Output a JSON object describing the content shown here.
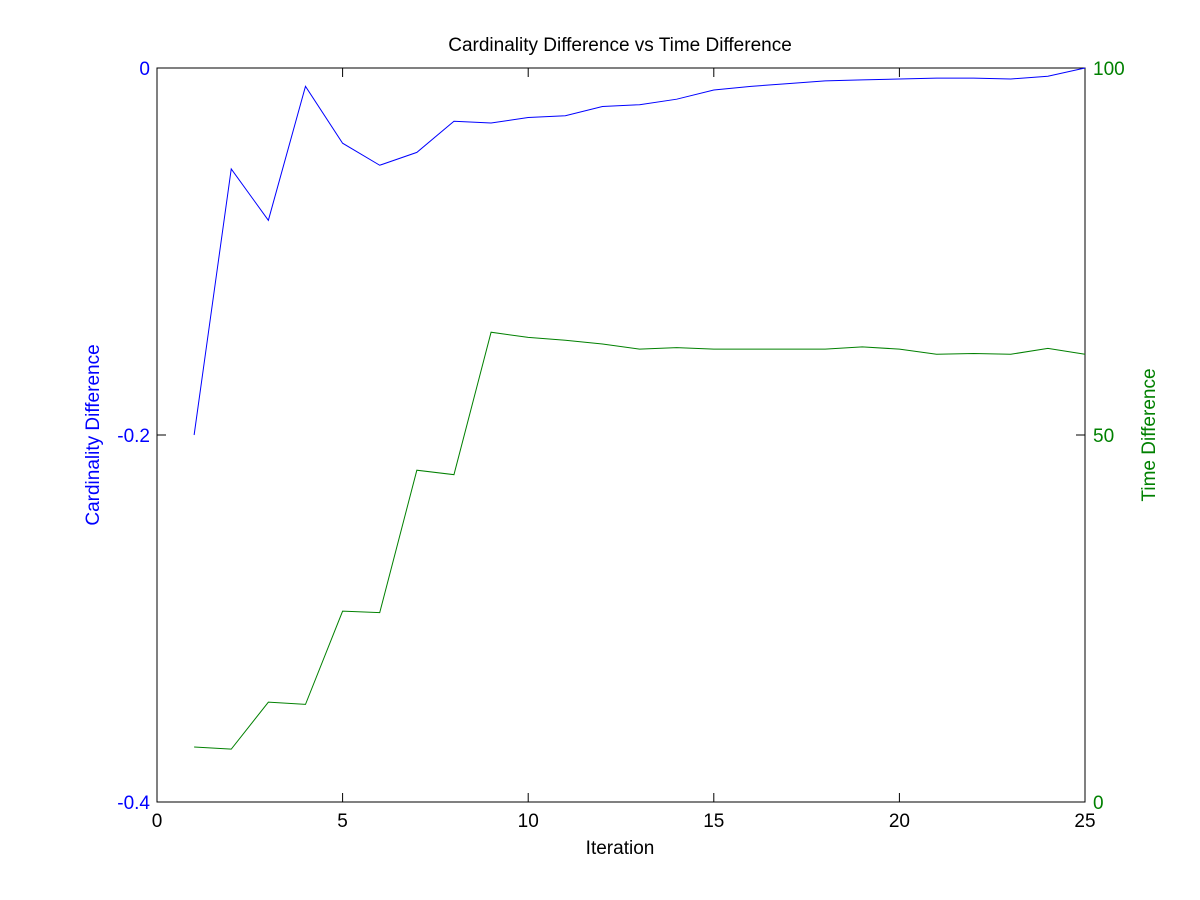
{
  "chart_data": {
    "type": "line",
    "title": "Cardinality Difference vs Time Difference",
    "xlabel": "Iteration",
    "xlim": [
      0,
      25
    ],
    "x_ticks": [
      0,
      5,
      10,
      15,
      20,
      25
    ],
    "y_left": {
      "label": "Cardinality Difference",
      "lim": [
        -0.4,
        0
      ],
      "ticks": [
        -0.4,
        -0.2,
        0
      ],
      "tick_labels": [
        "-0.4",
        "-0.2",
        "0"
      ],
      "color": "#0000ff"
    },
    "y_right": {
      "label": "Time Difference",
      "lim": [
        0,
        100
      ],
      "ticks": [
        0,
        50,
        100
      ],
      "tick_labels": [
        "0",
        "50",
        "100"
      ],
      "color": "#008000"
    },
    "x": [
      1,
      2,
      3,
      4,
      5,
      6,
      7,
      8,
      9,
      10,
      11,
      12,
      13,
      14,
      15,
      16,
      17,
      18,
      19,
      20,
      21,
      22,
      23,
      24,
      25
    ],
    "series": [
      {
        "axis": "left",
        "color": "#0000ff",
        "values": [
          -0.2,
          -0.055,
          -0.083,
          -0.01,
          -0.041,
          -0.053,
          -0.046,
          -0.029,
          -0.03,
          -0.027,
          -0.026,
          -0.021,
          -0.02,
          -0.017,
          -0.012,
          -0.01,
          -0.0085,
          -0.007,
          -0.0065,
          -0.006,
          -0.0055,
          -0.0055,
          -0.006,
          -0.0045,
          0
        ]
      },
      {
        "axis": "right",
        "color": "#008000",
        "values": [
          7.5,
          7.2,
          13.6,
          13.3,
          26.0,
          25.8,
          45.2,
          44.6,
          64.0,
          63.3,
          62.9,
          62.4,
          61.7,
          61.9,
          61.7,
          61.7,
          61.7,
          61.7,
          62.0,
          61.7,
          61.0,
          61.1,
          61.0,
          61.8,
          61.0
        ]
      }
    ],
    "grid": false
  }
}
